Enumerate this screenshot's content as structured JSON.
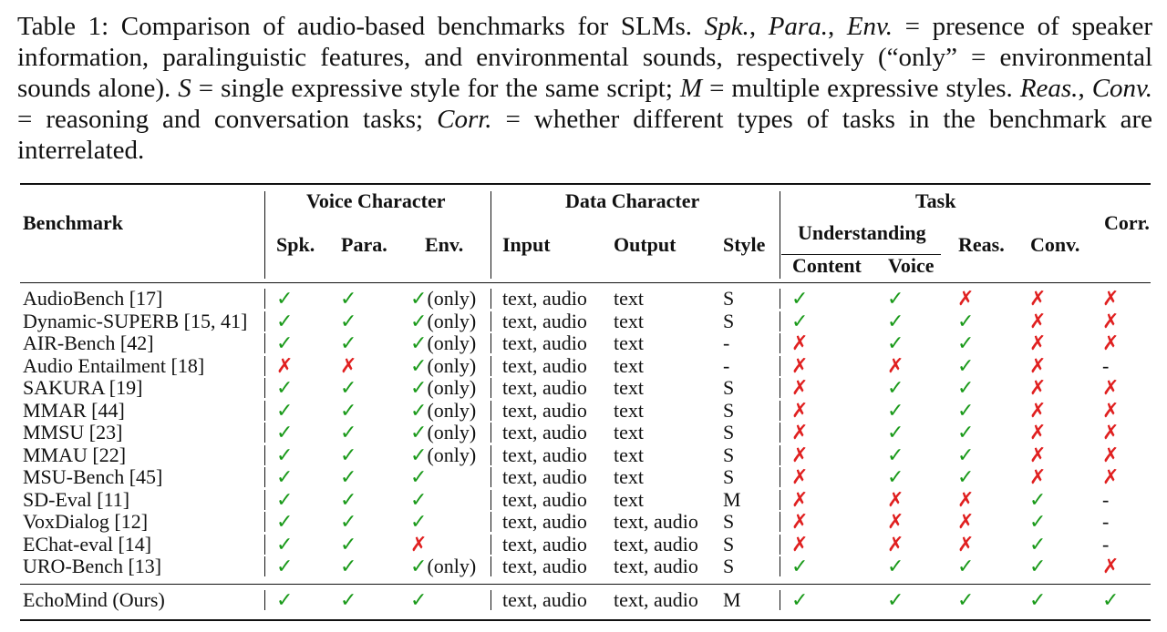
{
  "caption": {
    "label": "Table 1: Comparison of audio-based benchmarks for SLMs.",
    "parts": [
      {
        "t": " "
      },
      {
        "t": "Spk.",
        "i": true
      },
      {
        "t": ", "
      },
      {
        "t": "Para.",
        "i": true
      },
      {
        "t": ", "
      },
      {
        "t": "Env.",
        "i": true
      },
      {
        "t": " = presence of speaker information, paralinguistic features, and environmental sounds, respectively (“only” = environmental sounds alone). "
      },
      {
        "t": "S",
        "i": true
      },
      {
        "t": " = single expressive style for the same script; "
      },
      {
        "t": "M",
        "i": true
      },
      {
        "t": " = multiple expressive styles. "
      },
      {
        "t": "Reas.",
        "i": true
      },
      {
        "t": ", "
      },
      {
        "t": "Conv.",
        "i": true
      },
      {
        "t": " = reasoning and conversation tasks; "
      },
      {
        "t": "Corr.",
        "i": true
      },
      {
        "t": " = whether different types of tasks in the benchmark are interrelated."
      }
    ]
  },
  "header": {
    "benchmark": "Benchmark",
    "voice_character": "Voice Character",
    "data_character": "Data Character",
    "task": "Task",
    "corr": "Corr.",
    "spk": "Spk.",
    "para": "Para.",
    "env": "Env.",
    "input": "Input",
    "output": "Output",
    "style": "Style",
    "understanding": "Understanding",
    "reas": "Reas.",
    "conv": "Conv.",
    "content": "Content",
    "voice": "Voice"
  },
  "symbols": {
    "check": "✓",
    "cross": "✗",
    "dash": "-",
    "only": "(only)"
  },
  "colors": {
    "check": "#1a9a1a",
    "cross": "#e02020"
  },
  "rows": [
    {
      "name": "AudioBench [17]",
      "spk": "Y",
      "para": "Y",
      "env": "Yo",
      "input": "text, audio",
      "output": "text",
      "style": "S",
      "content": "Y",
      "voice": "Y",
      "reas": "N",
      "conv": "N",
      "corr": "N"
    },
    {
      "name": "Dynamic-SUPERB [15, 41]",
      "spk": "Y",
      "para": "Y",
      "env": "Yo",
      "input": "text, audio",
      "output": "text",
      "style": "S",
      "content": "Y",
      "voice": "Y",
      "reas": "Y",
      "conv": "N",
      "corr": "N"
    },
    {
      "name": "AIR-Bench [42]",
      "spk": "Y",
      "para": "Y",
      "env": "Yo",
      "input": "text, audio",
      "output": "text",
      "style": "-",
      "content": "N",
      "voice": "Y",
      "reas": "Y",
      "conv": "N",
      "corr": "N"
    },
    {
      "name": "Audio Entailment [18]",
      "spk": "N",
      "para": "N",
      "env": "Yo",
      "input": "text, audio",
      "output": "text",
      "style": "-",
      "content": "N",
      "voice": "N",
      "reas": "Y",
      "conv": "N",
      "corr": "-"
    },
    {
      "name": "SAKURA [19]",
      "spk": "Y",
      "para": "Y",
      "env": "Yo",
      "input": "text, audio",
      "output": "text",
      "style": "S",
      "content": "N",
      "voice": "Y",
      "reas": "Y",
      "conv": "N",
      "corr": "N"
    },
    {
      "name": "MMAR [44]",
      "spk": "Y",
      "para": "Y",
      "env": "Yo",
      "input": "text, audio",
      "output": "text",
      "style": "S",
      "content": "N",
      "voice": "Y",
      "reas": "Y",
      "conv": "N",
      "corr": "N"
    },
    {
      "name": "MMSU [23]",
      "spk": "Y",
      "para": "Y",
      "env": "Yo",
      "input": "text, audio",
      "output": "text",
      "style": "S",
      "content": "N",
      "voice": "Y",
      "reas": "Y",
      "conv": "N",
      "corr": "N"
    },
    {
      "name": "MMAU [22]",
      "spk": "Y",
      "para": "Y",
      "env": "Yo",
      "input": "text, audio",
      "output": "text",
      "style": "S",
      "content": "N",
      "voice": "Y",
      "reas": "Y",
      "conv": "N",
      "corr": "N"
    },
    {
      "name": "MSU-Bench [45]",
      "spk": "Y",
      "para": "Y",
      "env": "Y",
      "input": "text, audio",
      "output": "text",
      "style": "S",
      "content": "N",
      "voice": "Y",
      "reas": "Y",
      "conv": "N",
      "corr": "N"
    },
    {
      "name": "SD-Eval [11]",
      "spk": "Y",
      "para": "Y",
      "env": "Y",
      "input": "text, audio",
      "output": "text",
      "style": "M",
      "content": "N",
      "voice": "N",
      "reas": "N",
      "conv": "Y",
      "corr": "-"
    },
    {
      "name": "VoxDialog [12]",
      "spk": "Y",
      "para": "Y",
      "env": "Y",
      "input": "text, audio",
      "output": "text, audio",
      "style": "S",
      "content": "N",
      "voice": "N",
      "reas": "N",
      "conv": "Y",
      "corr": "-"
    },
    {
      "name": "EChat-eval [14]",
      "spk": "Y",
      "para": "Y",
      "env": "N",
      "input": "text, audio",
      "output": "text, audio",
      "style": "S",
      "content": "N",
      "voice": "N",
      "reas": "N",
      "conv": "Y",
      "corr": "-"
    },
    {
      "name": "URO-Bench [13]",
      "spk": "Y",
      "para": "Y",
      "env": "Yo",
      "input": "text, audio",
      "output": "text, audio",
      "style": "S",
      "content": "Y",
      "voice": "Y",
      "reas": "Y",
      "conv": "Y",
      "corr": "N"
    }
  ],
  "ours": {
    "name": "EchoMind (Ours)",
    "spk": "Y",
    "para": "Y",
    "env": "Y",
    "input": "text, audio",
    "output": "text, audio",
    "style": "M",
    "content": "Y",
    "voice": "Y",
    "reas": "Y",
    "conv": "Y",
    "corr": "Y"
  }
}
